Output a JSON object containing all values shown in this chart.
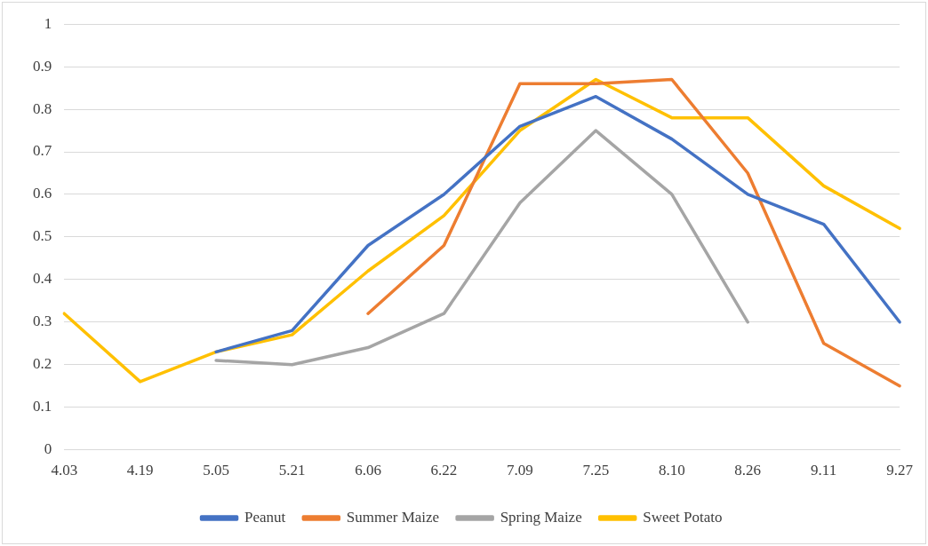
{
  "chart_data": {
    "type": "line",
    "categories": [
      "4.03",
      "4.19",
      "5.05",
      "5.21",
      "6.06",
      "6.22",
      "7.09",
      "7.25",
      "8.10",
      "8.26",
      "9.11",
      "9.27"
    ],
    "series": [
      {
        "name": "Peanut",
        "color": "#4472c4",
        "values": [
          null,
          null,
          0.23,
          0.28,
          0.48,
          0.6,
          0.76,
          0.83,
          0.73,
          0.6,
          0.53,
          0.3
        ]
      },
      {
        "name": "Summer Maize",
        "color": "#ed7d31",
        "values": [
          null,
          null,
          null,
          null,
          0.32,
          0.48,
          0.86,
          0.86,
          0.87,
          0.65,
          0.25,
          0.15
        ]
      },
      {
        "name": "Spring Maize",
        "color": "#a5a5a5",
        "values": [
          null,
          null,
          0.21,
          0.2,
          0.24,
          0.32,
          0.58,
          0.75,
          0.6,
          0.3,
          null,
          null
        ]
      },
      {
        "name": "Sweet Potato",
        "color": "#ffc000",
        "values": [
          0.32,
          0.16,
          0.23,
          0.27,
          0.42,
          0.55,
          0.75,
          0.87,
          0.78,
          0.78,
          0.62,
          0.52
        ]
      }
    ],
    "ylim": [
      0,
      1
    ],
    "yticks": [
      0,
      0.1,
      0.2,
      0.3,
      0.4,
      0.5,
      0.6,
      0.7,
      0.8,
      0.9,
      1
    ],
    "grid": "y",
    "legend": "bottom",
    "marker": "none",
    "line_style": "solid"
  }
}
